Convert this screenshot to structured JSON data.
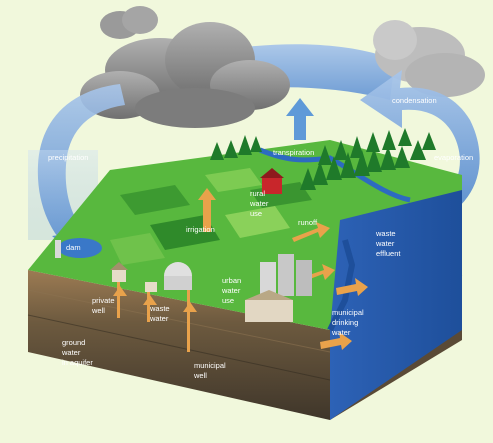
{
  "labels": {
    "precipitation": "precipitation",
    "condensation": "condensation",
    "evaporation": "evaporation",
    "transpiration": "transpiration",
    "dam": "dam",
    "irrigation": "irrigation",
    "rural_water_use": [
      "rural",
      "water",
      "use"
    ],
    "runoff": "runoff",
    "waste_water_effluent": [
      "waste",
      "water",
      "effluent"
    ],
    "urban_water_use": [
      "urban",
      "water",
      "use"
    ],
    "private_well": [
      "private",
      "well"
    ],
    "waste_water": [
      "waste",
      "water"
    ],
    "municipal_drinking_water": [
      "municipal",
      "drinking",
      "water"
    ],
    "ground_water_in_aquifer": [
      "ground",
      "water",
      "in aquifer"
    ],
    "municipal_well": [
      "municipal",
      "well"
    ]
  },
  "colors": {
    "background": "#f1f8dc",
    "arrow_blue": "#5b8fcf",
    "grass": "#4fb33a",
    "field_dark": "#2e8a2a",
    "water": "#2e6fc0",
    "soil_top": "#a8835a",
    "soil_dark": "#4a3f30",
    "cloud": "#8d8d8d",
    "barn": "#c8262b",
    "well_pipe": "#e9a24b"
  }
}
